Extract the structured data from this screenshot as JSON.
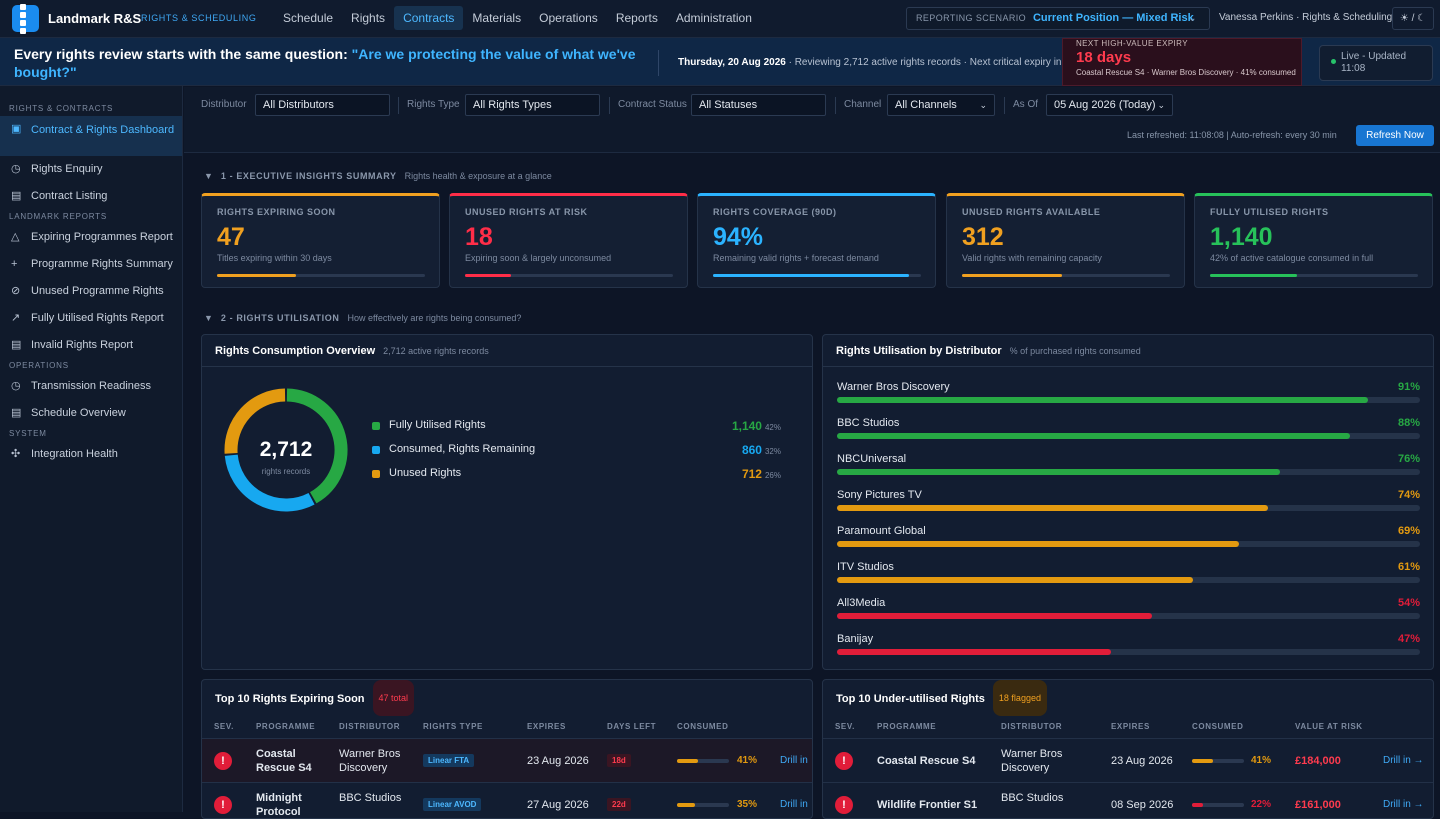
{
  "app": {
    "title": "Landmark R&S",
    "subtitle": "RIGHTS & SCHEDULING"
  },
  "nav": [
    "Schedule",
    "Rights",
    "Contracts",
    "Materials",
    "Operations",
    "Reports",
    "Administration"
  ],
  "nav_active": "Contracts",
  "scenario": {
    "label": "REPORTING SCENARIO",
    "value": "Current Position — Mixed Risk"
  },
  "user": "Vanessa Perkins · Rights & Scheduling",
  "theme_toggle": "☀ / ☾",
  "banner": {
    "question_prefix": "Every rights review starts with the same question: ",
    "question": "\"Are we protecting the value of what we've bought?\"",
    "date": "Thursday, 20 Aug 2026",
    "context": " · Reviewing 2,712 active rights records · Next critical expiry in"
  },
  "expiry": {
    "label": "NEXT HIGH-VALUE EXPIRY",
    "value": "18 days",
    "detail": "Coastal Rescue S4 · Warner Bros Discovery · 41% consumed"
  },
  "live": {
    "line1": "Live - Updated",
    "line2": "11:08"
  },
  "sidebar": {
    "sections": [
      {
        "title": "RIGHTS & CONTRACTS",
        "items": [
          {
            "label": "Contract & Rights Dashboard",
            "icon": "▣"
          },
          {
            "label": "Rights Enquiry",
            "icon": "◷"
          },
          {
            "label": "Contract Listing",
            "icon": "▤"
          }
        ]
      },
      {
        "title": "LANDMARK REPORTS",
        "items": [
          {
            "label": "Expiring Programmes Report",
            "icon": "△"
          },
          {
            "label": "Programme Rights Summary",
            "icon": "+"
          },
          {
            "label": "Unused Programme Rights",
            "icon": "⊘"
          },
          {
            "label": "Fully Utilised Rights Report",
            "icon": "↗"
          },
          {
            "label": "Invalid Rights Report",
            "icon": "▤"
          }
        ]
      },
      {
        "title": "OPERATIONS",
        "items": [
          {
            "label": "Transmission Readiness",
            "icon": "◷"
          },
          {
            "label": "Schedule Overview",
            "icon": "▤"
          }
        ]
      },
      {
        "title": "SYSTEM",
        "items": [
          {
            "label": "Integration Health",
            "icon": "✣"
          }
        ]
      }
    ]
  },
  "filters": {
    "distributor": {
      "label": "Distributor",
      "value": "All Distributors"
    },
    "rights_type": {
      "label": "Rights Type",
      "value": "All Rights Types"
    },
    "status": {
      "label": "Contract Status",
      "value": "All Statuses"
    },
    "channel": {
      "label": "Channel",
      "value": "All Channels"
    },
    "as_of": {
      "label": "As Of",
      "value": "05 Aug 2026 (Today)"
    },
    "refreshed": "Last refreshed: 11:08:08  |  Auto-refresh: every 30 min",
    "refresh_btn": "Refresh Now"
  },
  "section1": {
    "title": "1 - EXECUTIVE INSIGHTS SUMMARY",
    "sub": "Rights health & exposure at a glance"
  },
  "kpis": [
    {
      "title": "RIGHTS EXPIRING SOON",
      "value": "47",
      "sub": "Titles expiring within 30 days",
      "color": "#f0a020",
      "fill": 0.38
    },
    {
      "title": "UNUSED RIGHTS AT RISK",
      "value": "18",
      "sub": "Expiring soon & largely unconsumed",
      "color": "#ff2d48",
      "fill": 0.22
    },
    {
      "title": "RIGHTS COVERAGE (90D)",
      "value": "94%",
      "sub": "Remaining valid rights + forecast demand",
      "color": "#2bb3ff",
      "fill": 0.94
    },
    {
      "title": "UNUSED RIGHTS AVAILABLE",
      "value": "312",
      "sub": "Valid rights with remaining capacity",
      "color": "#f0a020",
      "fill": 0.48
    },
    {
      "title": "FULLY UTILISED RIGHTS",
      "value": "1,140",
      "sub": "42% of active catalogue consumed in full",
      "color": "#27c15a",
      "fill": 0.42
    }
  ],
  "section2": {
    "title": "2 - RIGHTS UTILISATION",
    "sub": "How effectively are rights being consumed?"
  },
  "consumption": {
    "title": "Rights Consumption Overview",
    "sub": "2,712 active rights records",
    "total": "2,712",
    "total_label": "rights records",
    "items": [
      {
        "label": "Fully Utilised Rights",
        "value": "1,140",
        "pct": "42%",
        "color": "#27a844"
      },
      {
        "label": "Consumed, Rights Remaining",
        "value": "860",
        "pct": "32%",
        "color": "#17a8f0"
      },
      {
        "label": "Unused Rights",
        "value": "712",
        "pct": "26%",
        "color": "#e39a10"
      }
    ]
  },
  "chart_data": {
    "type": "bar",
    "title": "Rights Utilisation by Distributor",
    "subtitle": "% of purchased rights consumed",
    "categories": [
      "Warner Bros Discovery",
      "BBC Studios",
      "NBCUniversal",
      "Sony Pictures TV",
      "Paramount Global",
      "ITV Studios",
      "All3Media",
      "Banijay"
    ],
    "values": [
      91,
      88,
      76,
      74,
      69,
      61,
      54,
      47
    ],
    "ylim": [
      0,
      100
    ],
    "colors": [
      "#27a844",
      "#27a844",
      "#27a844",
      "#e39a10",
      "#e39a10",
      "#e39a10",
      "#e11d39",
      "#e11d39"
    ]
  },
  "expiring_table": {
    "title": "Top 10 Rights Expiring Soon",
    "badge": "47 total",
    "headers": [
      "SEV.",
      "PROGRAMME",
      "DISTRIBUTOR",
      "RIGHTS TYPE",
      "EXPIRES",
      "DAYS LEFT",
      "CONSUMED"
    ],
    "rows": [
      {
        "programme": "Coastal Rescue S4",
        "distributor": "Warner Bros Discovery",
        "type": "Linear FTA",
        "expires": "23 Aug 2026",
        "days": "18d",
        "consumed": "41%",
        "fill": 0.41,
        "drill": "Drill in →"
      },
      {
        "programme": "Midnight Protocol",
        "distributor": "BBC Studios",
        "type": "Linear AVOD",
        "expires": "27 Aug 2026",
        "days": "22d",
        "consumed": "35%",
        "fill": 0.35,
        "drill": "Drill in →"
      }
    ]
  },
  "underutilised_table": {
    "title": "Top 10 Under-utilised Rights",
    "badge": "18 flagged",
    "headers": [
      "SEV.",
      "PROGRAMME",
      "DISTRIBUTOR",
      "EXPIRES",
      "CONSUMED",
      "VALUE AT RISK"
    ],
    "rows": [
      {
        "programme": "Coastal Rescue S4",
        "distributor": "Warner Bros Discovery",
        "expires": "23 Aug 2026",
        "consumed": "41%",
        "fill": 0.41,
        "fillcolor": "#e39a10",
        "value": "£184,000",
        "drill": "Drill in →"
      },
      {
        "programme": "Wildlife Frontier S1",
        "distributor": "BBC Studios",
        "expires": "08 Sep 2026",
        "consumed": "22%",
        "fill": 0.22,
        "fillcolor": "#e11d39",
        "value": "£161,000",
        "drill": "Drill in →"
      }
    ]
  }
}
